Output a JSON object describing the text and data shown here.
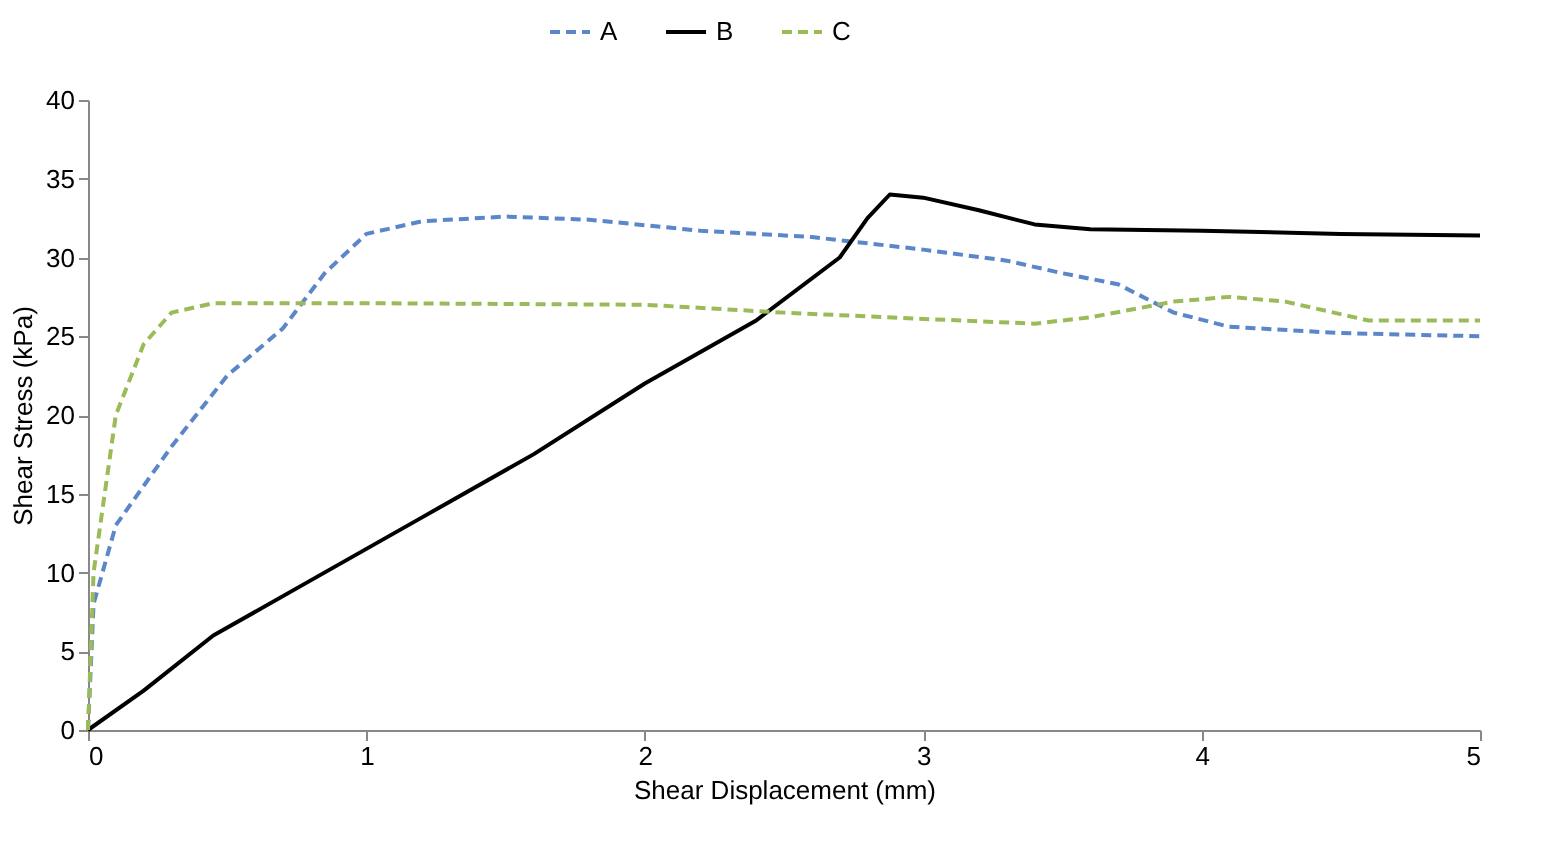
{
  "chart_data": {
    "type": "line",
    "xlabel": "Shear Displacement (mm)",
    "ylabel": "Shear Stress (kPa)",
    "xlim": [
      0,
      5
    ],
    "xticks": [
      0,
      1,
      2,
      3,
      4,
      5
    ],
    "ylim": [
      0,
      40
    ],
    "yticks": [
      0,
      5,
      10,
      15,
      20,
      25,
      30,
      35,
      40
    ],
    "legend": "top",
    "grid": false,
    "marker": "none",
    "series": [
      {
        "name": "A",
        "color": "#5b87c8",
        "line_style": "dashed",
        "x": [
          0,
          0.02,
          0.1,
          0.3,
          0.5,
          0.7,
          0.85,
          1.0,
          1.2,
          1.5,
          1.8,
          2.2,
          2.6,
          3.0,
          3.3,
          3.5,
          3.7,
          3.9,
          4.1,
          4.5,
          5
        ],
        "values": [
          0,
          8,
          13,
          18,
          22.5,
          25.5,
          29,
          31.5,
          32.3,
          32.6,
          32.4,
          31.7,
          31.3,
          30.5,
          29.8,
          29,
          28.3,
          26.5,
          25.6,
          25.2,
          25
        ]
      },
      {
        "name": "B",
        "color": "#000000",
        "line_style": "solid",
        "x": [
          0,
          0.2,
          0.45,
          0.8,
          1.2,
          1.6,
          2.0,
          2.4,
          2.7,
          2.8,
          2.88,
          3.0,
          3.2,
          3.4,
          3.6,
          4.0,
          4.5,
          5
        ],
        "values": [
          0,
          2.5,
          6,
          9.5,
          13.5,
          17.5,
          22,
          26,
          30,
          32.5,
          34,
          33.8,
          33,
          32.1,
          31.8,
          31.7,
          31.5,
          31.4
        ]
      },
      {
        "name": "C",
        "color": "#9bbb59",
        "line_style": "dashed",
        "x": [
          0,
          0.02,
          0.1,
          0.2,
          0.3,
          0.45,
          1,
          2,
          2.5,
          3,
          3.4,
          3.6,
          3.9,
          4.1,
          4.3,
          4.6,
          5
        ],
        "values": [
          0,
          10,
          20,
          24.5,
          26.5,
          27.1,
          27.1,
          27,
          26.5,
          26.1,
          25.8,
          26.2,
          27.2,
          27.5,
          27.2,
          26,
          26
        ]
      }
    ]
  }
}
